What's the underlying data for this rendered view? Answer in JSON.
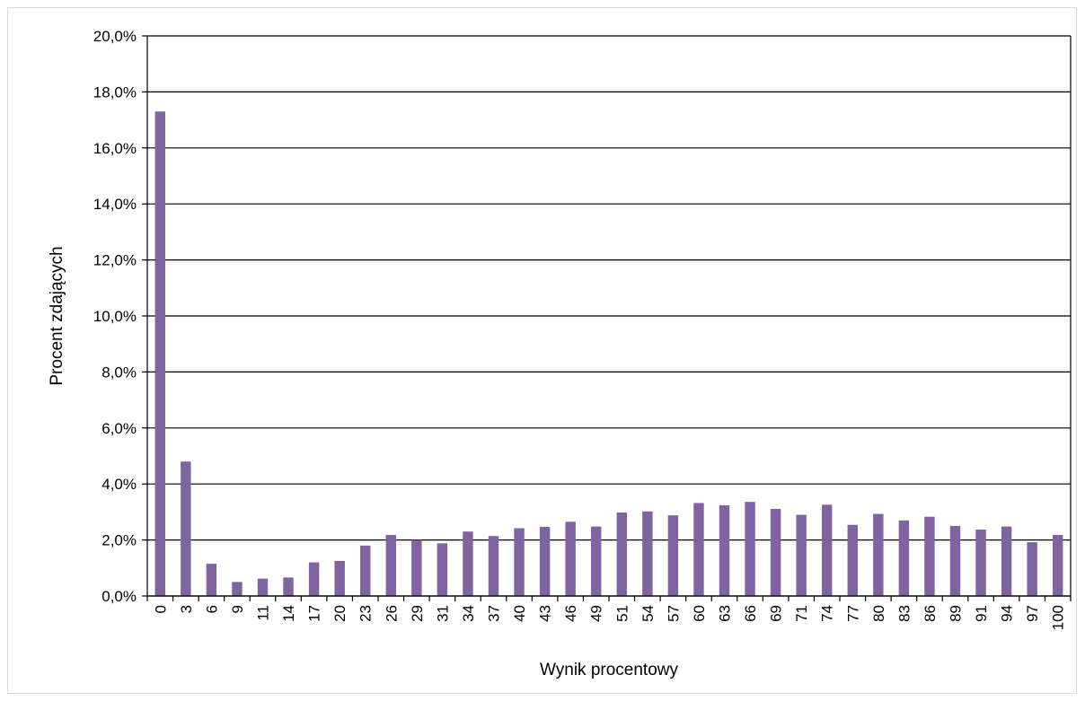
{
  "chart_data": {
    "type": "bar",
    "xlabel": "Wynik procentowy",
    "ylabel": "Procent zdających",
    "ylim": [
      0,
      20
    ],
    "ytick_step": 2,
    "ytick_format": "one-decimal-comma-percent",
    "grid": "horizontal",
    "legend": "none",
    "bar_color": "#8064a2",
    "categories": [
      "0",
      "3",
      "6",
      "9",
      "11",
      "14",
      "17",
      "20",
      "23",
      "26",
      "29",
      "31",
      "34",
      "37",
      "40",
      "43",
      "46",
      "49",
      "51",
      "54",
      "57",
      "60",
      "63",
      "66",
      "69",
      "71",
      "74",
      "77",
      "80",
      "83",
      "86",
      "89",
      "91",
      "94",
      "97",
      "100"
    ],
    "values": [
      17.3,
      4.8,
      1.15,
      0.5,
      0.62,
      0.66,
      1.2,
      1.25,
      1.8,
      2.18,
      2.0,
      1.88,
      2.3,
      2.14,
      2.42,
      2.47,
      2.65,
      2.48,
      2.98,
      3.02,
      2.88,
      3.32,
      3.24,
      3.36,
      3.11,
      2.9,
      3.26,
      2.54,
      2.93,
      2.7,
      2.83,
      2.5,
      2.37,
      2.48,
      1.92,
      2.18
    ]
  }
}
